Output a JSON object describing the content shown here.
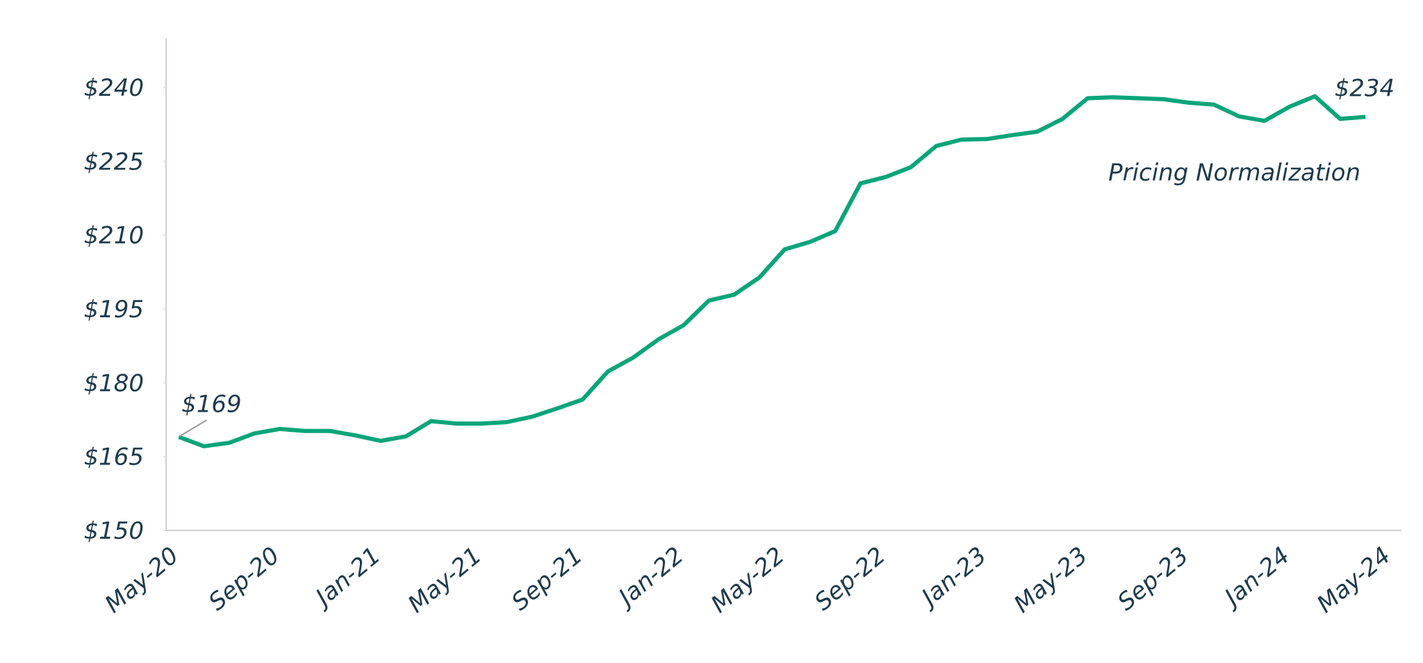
{
  "chart_data": {
    "type": "line",
    "categories": [
      "May-20",
      null,
      null,
      null,
      "Sep-20",
      null,
      null,
      null,
      "Jan-21",
      null,
      null,
      null,
      "May-21",
      null,
      null,
      null,
      "Sep-21",
      null,
      null,
      null,
      "Jan-22",
      null,
      null,
      null,
      "May-22",
      null,
      null,
      null,
      "Sep-22",
      null,
      null,
      null,
      "Jan-23",
      null,
      null,
      null,
      "May-23",
      null,
      null,
      null,
      "Sep-23",
      null,
      null,
      null,
      "Jan-24",
      null,
      null,
      null,
      "May-24"
    ],
    "series": [
      {
        "color": "#0aa57a",
        "values": [
          169,
          167.1,
          167.8,
          169.7,
          170.6,
          170.2,
          170.2,
          169.3,
          168.2,
          169.1,
          172.2,
          171.7,
          171.7,
          172.0,
          173.1,
          174.8,
          176.6,
          182.3,
          185.1,
          188.8,
          191.7,
          196.7,
          197.9,
          201.4,
          207.1,
          208.6,
          210.8,
          220.5,
          221.8,
          223.8,
          228.1,
          229.4,
          229.5,
          230.3,
          231.0,
          233.6,
          237.8,
          238.0,
          237.8,
          237.6,
          236.9,
          236.5,
          234.1,
          233.2,
          236.1,
          238.2,
          233.6,
          234,
          null
        ]
      }
    ],
    "ylim": [
      150,
      250
    ],
    "yticks": [
      {
        "value": 150,
        "label": "$150"
      },
      {
        "value": 165,
        "label": "$165"
      },
      {
        "value": 180,
        "label": "$180"
      },
      {
        "value": 195,
        "label": "$195"
      },
      {
        "value": 210,
        "label": "$210"
      },
      {
        "value": 225,
        "label": "$225"
      },
      {
        "value": 240,
        "label": "$240"
      }
    ],
    "annotations": [
      {
        "text": "$169",
        "index": 0
      },
      {
        "text": "$234",
        "index": 47
      },
      {
        "text": "Pricing Normalization"
      }
    ]
  }
}
